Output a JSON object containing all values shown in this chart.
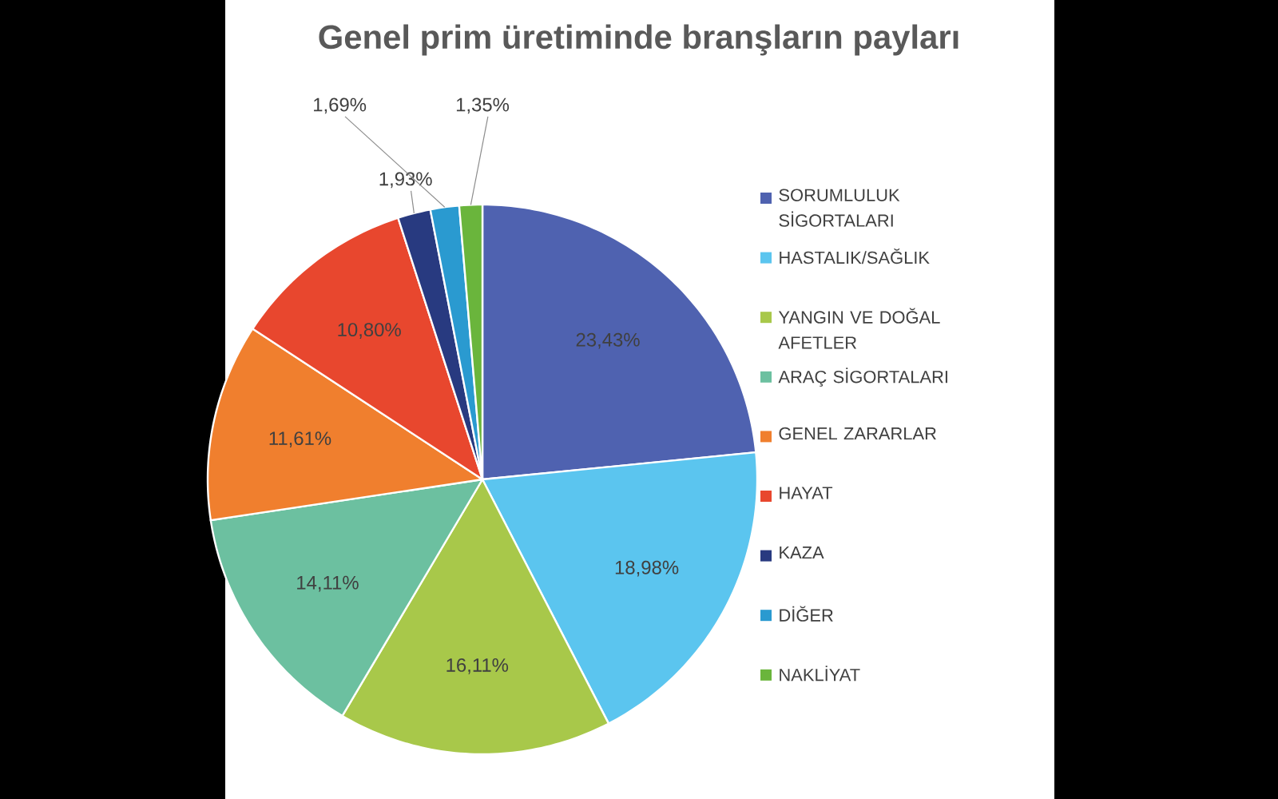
{
  "chart_data": {
    "type": "pie",
    "title": "Genel prim üretiminde branşların payları",
    "categories": [
      "SORUMLULUK SİGORTALARI",
      "HASTALIK/SAĞLIK",
      "YANGIN VE DOĞAL AFETLER",
      "ARAÇ SİGORTALARI",
      "GENEL ZARARLAR",
      "HAYAT",
      "KAZA",
      "DİĞER",
      "NAKLİYAT"
    ],
    "values": [
      23.43,
      18.98,
      16.11,
      14.11,
      11.61,
      10.8,
      1.93,
      1.69,
      1.35
    ],
    "value_labels": [
      "23,43%",
      "18,98%",
      "16,11%",
      "14,11%",
      "11,61%",
      "10,80%",
      "1,93%",
      "1,69%",
      "1,35%"
    ],
    "colors": [
      "#4f62b0",
      "#5bc5ef",
      "#a8c84a",
      "#6cc0a0",
      "#f07f2e",
      "#e8472e",
      "#283a80",
      "#2a9ad0",
      "#6ab53c"
    ],
    "legend": "right"
  }
}
